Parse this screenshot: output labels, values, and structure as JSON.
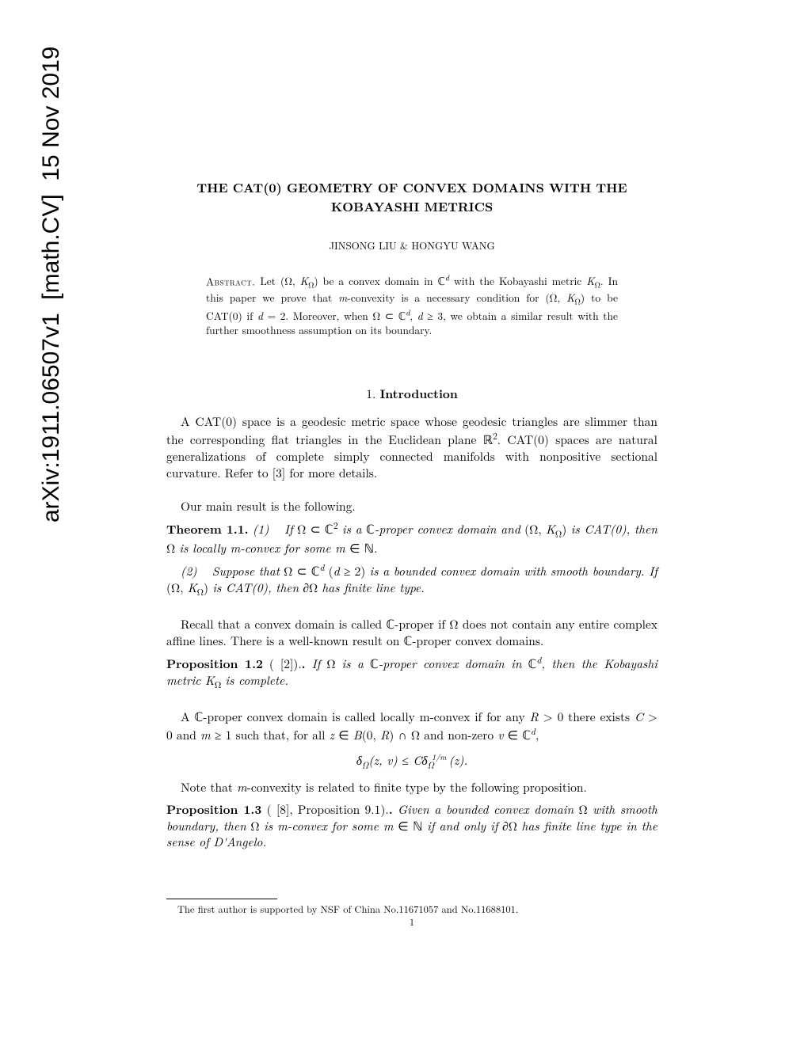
{
  "arxiv": {
    "id": "arXiv:1911.06507v1",
    "category": "[math.CV]",
    "date": "15 Nov 2019"
  },
  "title": {
    "line1": "THE CAT(0) GEOMETRY OF CONVEX DOMAINS WITH THE",
    "line2": "KOBAYASHI METRICS"
  },
  "authors": "JINSONG LIU & HONGYU WANG",
  "abstract": {
    "label": "Abstract.",
    "text": " Let (Ω, K_Ω) be a convex domain in ℂ^d with the Kobayashi metric K_Ω. In this paper we prove that m-convexity is a necessary condition for (Ω, K_Ω) to be CAT(0) if d = 2. Moreover, when Ω ⊂ ℂ^d, d ≥ 3, we obtain a similar result with the further smoothness assumption on its boundary."
  },
  "section1": {
    "num": "1.",
    "title": "Introduction"
  },
  "intro_p1": "A CAT(0) space is a geodesic metric space whose geodesic triangles are slimmer than the corresponding flat triangles in the Euclidean plane ℝ². CAT(0) spaces are natural generalizations of complete simply connected manifolds with nonpositive sectional curvature. Refer to [3] for more details.",
  "intro_p2": "Our main result is the following.",
  "theorem_1_1": {
    "head": "Theorem 1.1.",
    "part1": "(1)   If Ω ⊂ ℂ² is a ℂ-proper convex domain and (Ω, K_Ω) is CAT(0), then Ω is locally m-convex for some m ∈ ℕ.",
    "part2": "(2)   Suppose that Ω ⊂ ℂ^d (d ≥ 2) is a bounded convex domain with smooth boundary. If (Ω, K_Ω) is CAT(0), then ∂Ω has finite line type."
  },
  "recall_p": "Recall that a convex domain is called ℂ-proper if Ω does not contain any entire complex affine lines. There is a well-known result on ℂ-proper convex domains.",
  "prop_1_2": {
    "head": "Proposition 1.2",
    "cite": " ( [2]).",
    "text": " If Ω is a ℂ-proper convex domain in ℂ^d, then the Kobayashi metric K_Ω is complete."
  },
  "mconvex_p": "A ℂ-proper convex domain is called locally m-convex if for any R > 0 there exists C > 0 and m ≥ 1 such that, for all z ∈ B(0, R) ∩ Ω and non-zero v ∈ ℂ^d,",
  "inequality": "δ_Ω(z, v) ≤ Cδ_Ω^{1/m}(z).",
  "note_p": "Note that m-convexity is related to finite type by the following proposition.",
  "prop_1_3": {
    "head": "Proposition 1.3",
    "cite": " ( [8],  Proposition 9.1).",
    "text": " Given a bounded convex domain Ω with smooth boundary, then Ω is m-convex for some m ∈ ℕ if and only if ∂Ω has finite line type in the sense of D'Angelo."
  },
  "footnote": "The first author is supported by NSF of China No.11671057 and No.11688101.",
  "pagenum": "1",
  "colors": {
    "text": "#000000",
    "background": "#ffffff"
  },
  "typography": {
    "body_fontsize": 15.5,
    "abstract_fontsize": 13.5,
    "authors_fontsize": 13,
    "footnote_fontsize": 12.5,
    "arxiv_fontsize": 30
  }
}
